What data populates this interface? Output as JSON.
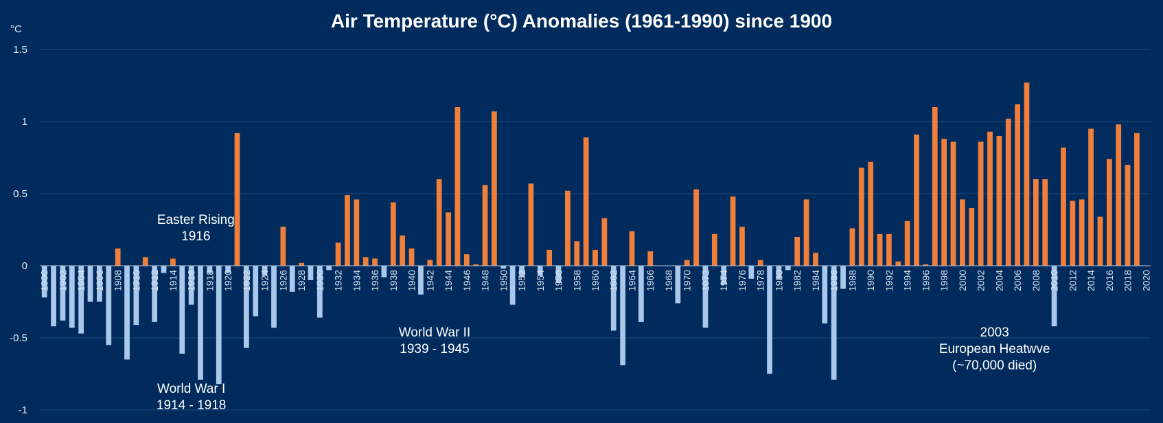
{
  "chart_data": {
    "type": "bar",
    "title": "Air Temperature (°C) Anomalies (1961-1990) since 1900",
    "ylabel": "°C",
    "xlabel": "",
    "ylim": [
      -1,
      1.5
    ],
    "yticks": [
      {
        "value": 1.5,
        "label": "1.5"
      },
      {
        "value": 1,
        "label": "1"
      },
      {
        "value": 0.5,
        "label": "0.5"
      },
      {
        "value": 0,
        "label": "0"
      },
      {
        "value": -0.5,
        "label": "-0.5"
      },
      {
        "value": -1,
        "label": "-1"
      }
    ],
    "grid": true,
    "legend": "none",
    "colors": {
      "positive": "#f07f3c",
      "negative": "#a9c8ec",
      "background": "#002b5c",
      "gridline": "#1d4a7c"
    },
    "categories": [
      "1900",
      "1901",
      "1902",
      "1903",
      "1904",
      "1905",
      "1906",
      "1907",
      "1908",
      "1909",
      "1910",
      "1911",
      "1912",
      "1913",
      "1914",
      "1915",
      "1916",
      "1917",
      "1918",
      "1919",
      "1920",
      "1921",
      "1922",
      "1923",
      "1924",
      "1925",
      "1926",
      "1927",
      "1928",
      "1929",
      "1930",
      "1931",
      "1932",
      "1933",
      "1934",
      "1935",
      "1936",
      "1937",
      "1938",
      "1939",
      "1940",
      "1941",
      "1942",
      "1943",
      "1944",
      "1945",
      "1946",
      "1947",
      "1948",
      "1949",
      "1950",
      "1951",
      "1952",
      "1953",
      "1954",
      "1955",
      "1956",
      "1957",
      "1958",
      "1959",
      "1960",
      "1961",
      "1962",
      "1963",
      "1964",
      "1965",
      "1966",
      "1967",
      "1968",
      "1969",
      "1970",
      "1971",
      "1972",
      "1973",
      "1974",
      "1975",
      "1976",
      "1977",
      "1978",
      "1979",
      "1980",
      "1981",
      "1982",
      "1983",
      "1984",
      "1985",
      "1986",
      "1987",
      "1988",
      "1989",
      "1990",
      "1991",
      "1992",
      "1993",
      "1994",
      "1995",
      "1996",
      "1997",
      "1998",
      "1999",
      "2000",
      "2001",
      "2002",
      "2003",
      "2004",
      "2005",
      "2006",
      "2007",
      "2008",
      "2009",
      "2010",
      "2011",
      "2012",
      "2013",
      "2014",
      "2015",
      "2016",
      "2017",
      "2018",
      "2019",
      "2020"
    ],
    "xtick_labels": [
      "1900",
      "1902",
      "1904",
      "1906",
      "1908",
      "1910",
      "1912",
      "1914",
      "1916",
      "1918",
      "1920",
      "1922",
      "1924",
      "1926",
      "1928",
      "1930",
      "1932",
      "1934",
      "1936",
      "1938",
      "1940",
      "1942",
      "1944",
      "1946",
      "1948",
      "1950",
      "1952",
      "1954",
      "1956",
      "1958",
      "1960",
      "1962",
      "1964",
      "1966",
      "1968",
      "1970",
      "1972",
      "1974",
      "1976",
      "1978",
      "1980",
      "1982",
      "1984",
      "1986",
      "1988",
      "1990",
      "1992",
      "1994",
      "1996",
      "1998",
      "2000",
      "2002",
      "2004",
      "2006",
      "2008",
      "2010",
      "2012",
      "2014",
      "2016",
      "2018",
      "2020"
    ],
    "values": [
      -0.22,
      -0.42,
      -0.38,
      -0.43,
      -0.47,
      -0.25,
      -0.25,
      -0.55,
      0.12,
      -0.65,
      -0.41,
      0.06,
      -0.39,
      -0.05,
      0.05,
      -0.61,
      -0.27,
      -0.79,
      -0.05,
      -0.82,
      -0.05,
      0.92,
      -0.57,
      -0.35,
      -0.07,
      -0.43,
      0.27,
      -0.18,
      0.02,
      -0.1,
      -0.36,
      -0.03,
      0.16,
      0.49,
      0.46,
      0.06,
      0.05,
      -0.08,
      0.44,
      0.21,
      0.12,
      -0.2,
      0.04,
      0.6,
      0.37,
      1.1,
      0.08,
      0.01,
      0.56,
      1.07,
      -0.02,
      -0.27,
      -0.08,
      0.57,
      -0.07,
      0.11,
      -0.12,
      0.52,
      0.17,
      0.89,
      0.11,
      0.33,
      -0.45,
      -0.69,
      0.24,
      -0.39,
      0.1,
      0.0,
      0.0,
      -0.26,
      0.04,
      0.53,
      -0.43,
      0.22,
      -0.13,
      0.48,
      0.27,
      -0.09,
      0.04,
      -0.75,
      -0.09,
      -0.03,
      0.2,
      0.46,
      0.09,
      -0.4,
      -0.79,
      -0.16,
      0.26,
      0.68,
      0.72,
      0.22,
      0.22,
      0.03,
      0.31,
      0.91,
      0.01,
      1.1,
      0.88,
      0.86,
      0.46,
      0.4,
      0.86,
      0.93,
      0.9,
      1.02,
      1.12,
      1.27,
      0.6,
      0.6,
      -0.42,
      0.82,
      0.45,
      0.46,
      0.95,
      0.34,
      0.74,
      0.98,
      0.7,
      0.92,
      0.0
    ],
    "annotations": [
      {
        "lines": [
          "Easter Rising",
          "1916"
        ],
        "x_year": 1916.5,
        "y": 0.29
      },
      {
        "lines": [
          "World War I",
          "1914 - 1918"
        ],
        "x_year": 1916,
        "y": -0.88
      },
      {
        "lines": [
          "World War II",
          "1939 - 1945"
        ],
        "x_year": 1942.5,
        "y": -0.49
      },
      {
        "lines": [
          "2003",
          "European Heatwve",
          "(~70,000 died)"
        ],
        "x_year": 2003.5,
        "y": -0.49
      }
    ]
  }
}
